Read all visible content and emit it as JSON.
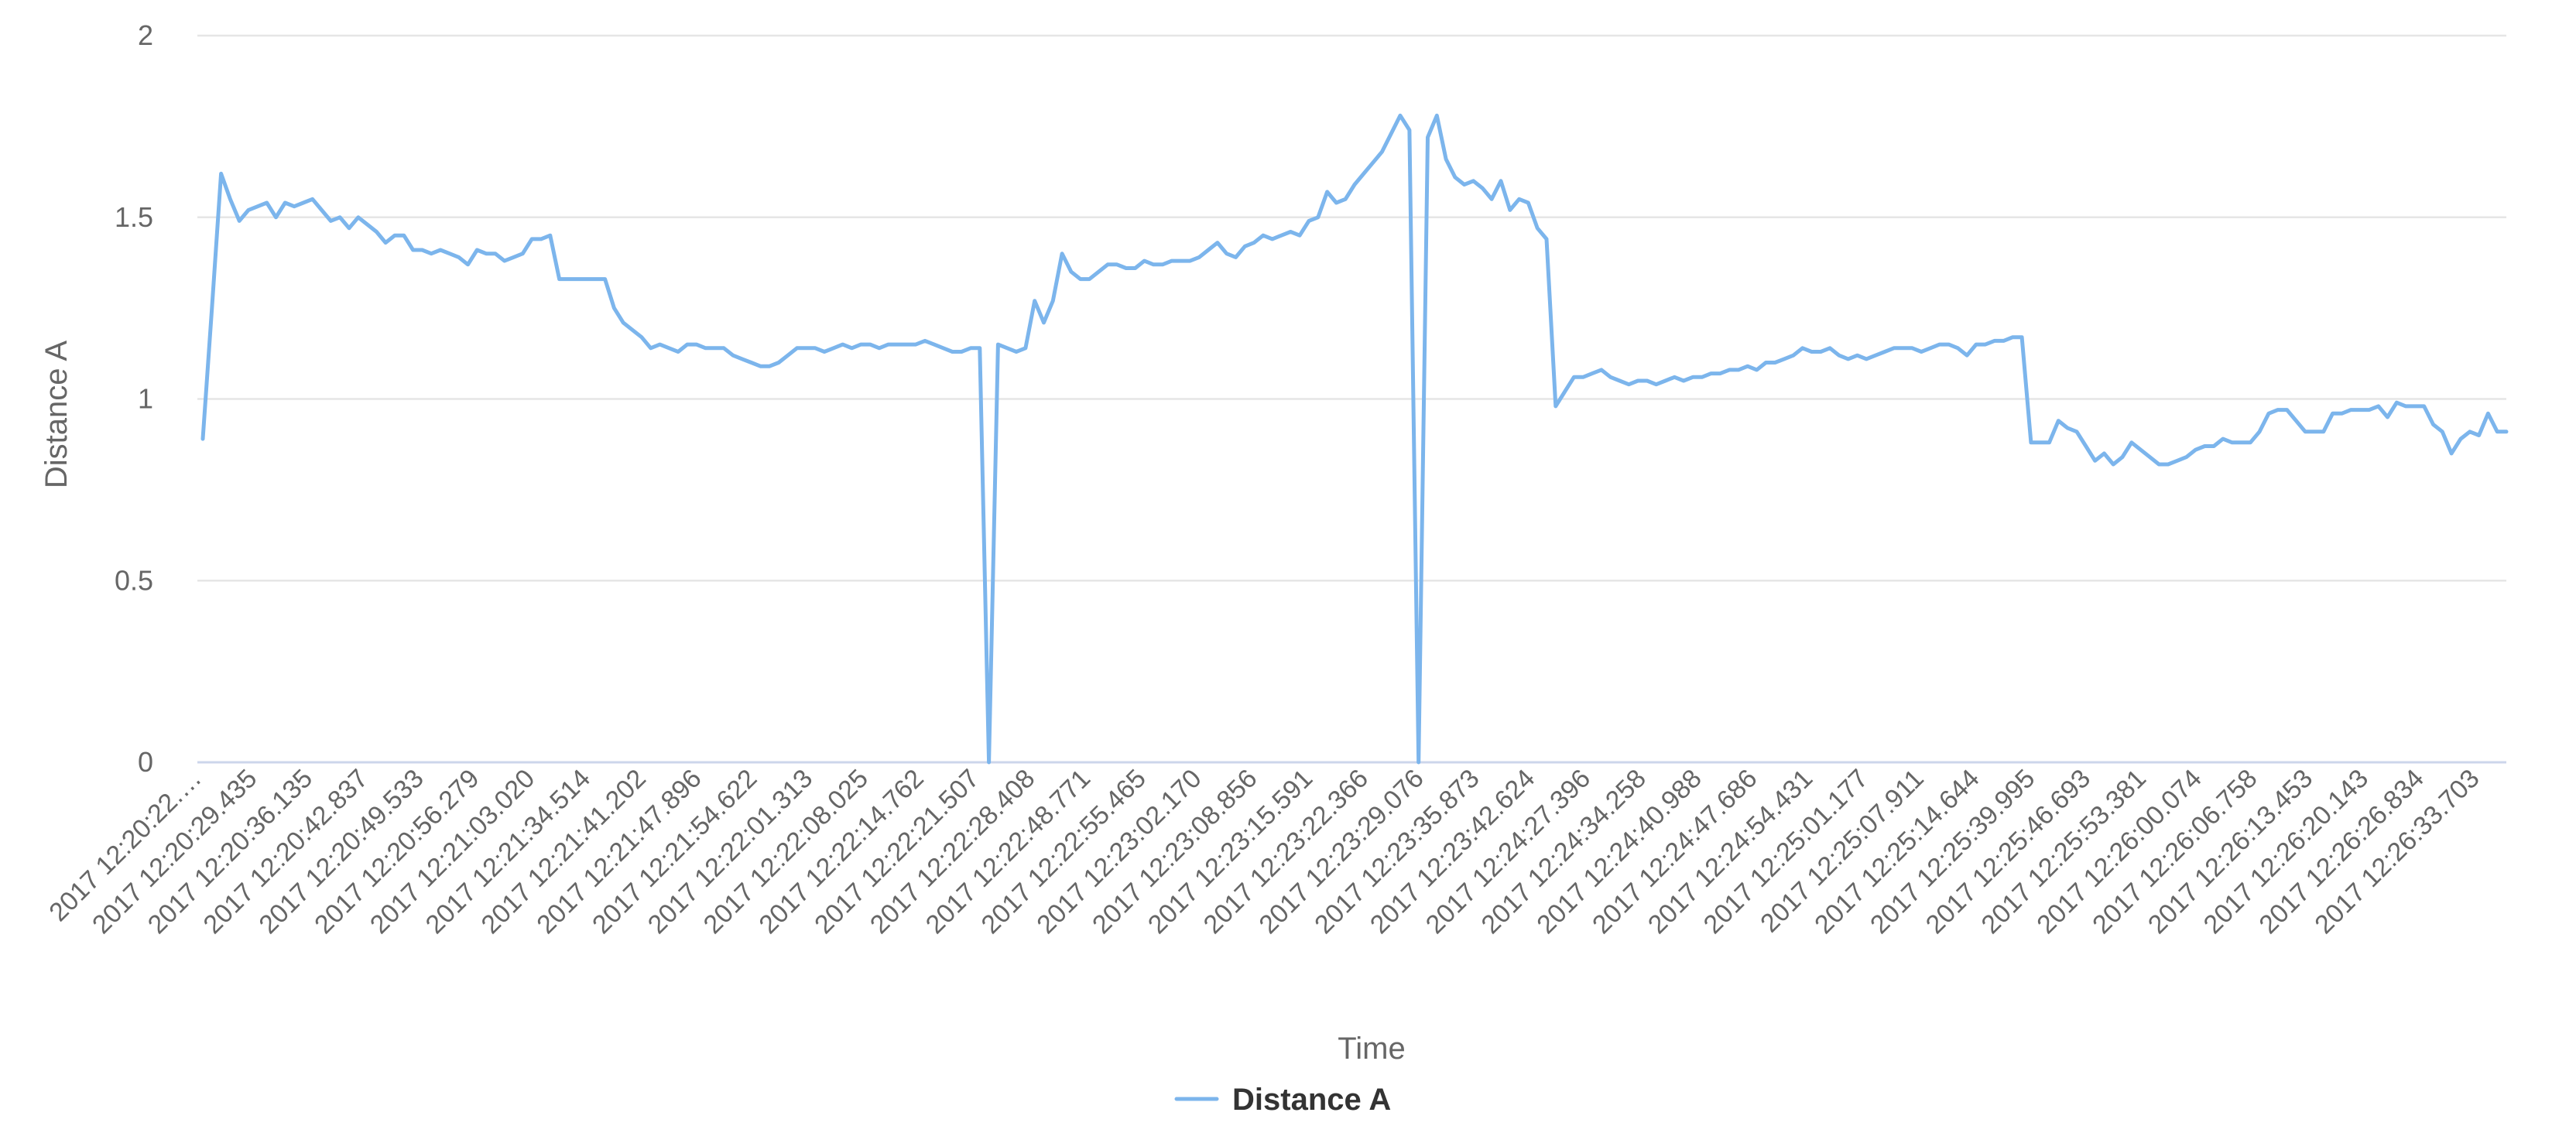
{
  "chart_data": {
    "type": "line",
    "title": "",
    "xlabel": "Time",
    "ylabel": "Distance A",
    "ylim": [
      0,
      2
    ],
    "yticks": [
      "0",
      "0.5",
      "1",
      "1.5",
      "2"
    ],
    "yticks_values": [
      0,
      0.5,
      1,
      1.5,
      2
    ],
    "grid": true,
    "legend": "bottom-center",
    "x_tick_labels": [
      "2017 12:20:22.…",
      "2017 12:20:29.435",
      "2017 12:20:36.135",
      "2017 12:20:42.837",
      "2017 12:20:49.533",
      "2017 12:20:56.279",
      "2017 12:21:03.020",
      "2017 12:21:34.514",
      "2017 12:21:41.202",
      "2017 12:21:47.896",
      "2017 12:21:54.622",
      "2017 12:22:01.313",
      "2017 12:22:08.025",
      "2017 12:22:14.762",
      "2017 12:22:21.507",
      "2017 12:22:28.408",
      "2017 12:22:48.771",
      "2017 12:22:55.465",
      "2017 12:23:02.170",
      "2017 12:23:08.856",
      "2017 12:23:15.591",
      "2017 12:23:22.366",
      "2017 12:23:29.076",
      "2017 12:23:35.873",
      "2017 12:23:42.624",
      "2017 12:24:27.396",
      "2017 12:24:34.258",
      "2017 12:24:40.988",
      "2017 12:24:47.686",
      "2017 12:24:54.431",
      "2017 12:25:01.177",
      "2017 12:25:07.911",
      "2017 12:25:14.644",
      "2017 12:25:39.995",
      "2017 12:25:46.693",
      "2017 12:25:53.381",
      "2017 12:26:00.074",
      "2017 12:26:06.758",
      "2017 12:26:13.453",
      "2017 12:26:20.143",
      "2017 12:26:26.834",
      "2017 12:26:33.703"
    ],
    "series": [
      {
        "name": "Distance A",
        "color": "#7cb5ec",
        "values": [
          0.89,
          1.25,
          1.62,
          1.55,
          1.49,
          1.52,
          1.53,
          1.54,
          1.5,
          1.54,
          1.53,
          1.54,
          1.55,
          1.52,
          1.49,
          1.5,
          1.47,
          1.5,
          1.48,
          1.46,
          1.43,
          1.45,
          1.45,
          1.41,
          1.41,
          1.4,
          1.41,
          1.4,
          1.39,
          1.37,
          1.41,
          1.4,
          1.4,
          1.38,
          1.39,
          1.4,
          1.44,
          1.44,
          1.45,
          1.33,
          1.33,
          1.33,
          1.33,
          1.33,
          1.33,
          1.25,
          1.21,
          1.19,
          1.17,
          1.14,
          1.15,
          1.14,
          1.13,
          1.15,
          1.15,
          1.14,
          1.14,
          1.14,
          1.12,
          1.11,
          1.1,
          1.09,
          1.09,
          1.1,
          1.12,
          1.14,
          1.14,
          1.14,
          1.13,
          1.14,
          1.15,
          1.14,
          1.15,
          1.15,
          1.14,
          1.15,
          1.15,
          1.15,
          1.15,
          1.16,
          1.15,
          1.14,
          1.13,
          1.13,
          1.14,
          1.14,
          0.0,
          1.15,
          1.14,
          1.13,
          1.14,
          1.27,
          1.21,
          1.27,
          1.4,
          1.35,
          1.33,
          1.33,
          1.35,
          1.37,
          1.37,
          1.36,
          1.36,
          1.38,
          1.37,
          1.37,
          1.38,
          1.38,
          1.38,
          1.39,
          1.41,
          1.43,
          1.4,
          1.39,
          1.42,
          1.43,
          1.45,
          1.44,
          1.45,
          1.46,
          1.45,
          1.49,
          1.5,
          1.57,
          1.54,
          1.55,
          1.59,
          1.62,
          1.65,
          1.68,
          1.73,
          1.78,
          1.74,
          0.0,
          1.72,
          1.78,
          1.66,
          1.61,
          1.59,
          1.6,
          1.58,
          1.55,
          1.6,
          1.52,
          1.55,
          1.54,
          1.47,
          1.44,
          0.98,
          1.02,
          1.06,
          1.06,
          1.07,
          1.08,
          1.06,
          1.05,
          1.04,
          1.05,
          1.05,
          1.04,
          1.05,
          1.06,
          1.05,
          1.06,
          1.06,
          1.07,
          1.07,
          1.08,
          1.08,
          1.09,
          1.08,
          1.1,
          1.1,
          1.11,
          1.12,
          1.14,
          1.13,
          1.13,
          1.14,
          1.12,
          1.11,
          1.12,
          1.11,
          1.12,
          1.13,
          1.14,
          1.14,
          1.14,
          1.13,
          1.14,
          1.15,
          1.15,
          1.14,
          1.12,
          1.15,
          1.15,
          1.16,
          1.16,
          1.17,
          1.17,
          0.88,
          0.88,
          0.88,
          0.94,
          0.92,
          0.91,
          0.87,
          0.83,
          0.85,
          0.82,
          0.84,
          0.88,
          0.86,
          0.84,
          0.82,
          0.82,
          0.83,
          0.84,
          0.86,
          0.87,
          0.87,
          0.89,
          0.88,
          0.88,
          0.88,
          0.91,
          0.96,
          0.97,
          0.97,
          0.94,
          0.91,
          0.91,
          0.91,
          0.96,
          0.96,
          0.97,
          0.97,
          0.97,
          0.98,
          0.95,
          0.99,
          0.98,
          0.98,
          0.98,
          0.93,
          0.91,
          0.85,
          0.89,
          0.91,
          0.9,
          0.96,
          0.91,
          0.91
        ]
      }
    ]
  }
}
